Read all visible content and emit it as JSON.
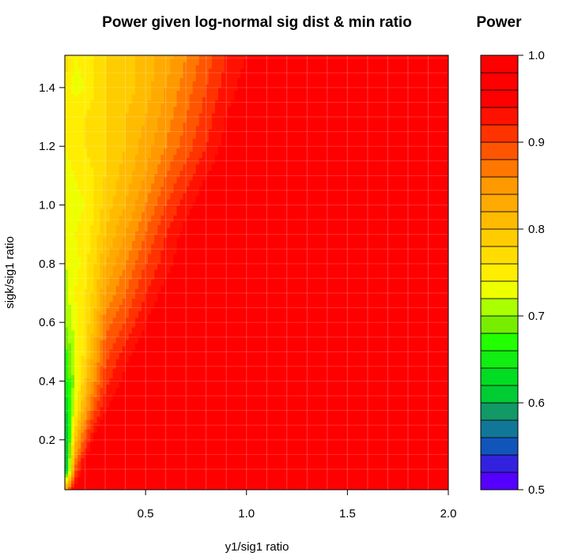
{
  "chart_data": {
    "type": "heatmap",
    "subtype": "filled-contour",
    "title": "Power given log-normal sig dist & min ratio",
    "xlabel": "y1/sig1 ratio",
    "ylabel": "sigk/sig1 ratio",
    "xlim": [
      0.1,
      2.0
    ],
    "ylim": [
      0.03,
      1.51
    ],
    "x_ticks": [
      0.5,
      1.0,
      1.5,
      2.0
    ],
    "x_tick_labels": [
      "0.5",
      "1.0",
      "1.5",
      "2.0"
    ],
    "y_ticks": [
      0.2,
      0.4,
      0.6,
      0.8,
      1.0,
      1.2,
      1.4
    ],
    "y_tick_labels": [
      "0.2",
      "0.4",
      "0.6",
      "0.8",
      "1.0",
      "1.2",
      "1.4"
    ],
    "grid": true,
    "x": [
      0.1,
      0.15,
      0.2,
      0.25,
      0.3,
      0.4,
      0.5,
      0.6,
      0.7,
      0.8,
      0.9,
      1.0,
      1.2,
      1.4,
      1.6,
      1.8,
      2.0
    ],
    "y": [
      0.03,
      0.1,
      0.2,
      0.3,
      0.4,
      0.5,
      0.6,
      0.7,
      0.8,
      0.9,
      1.0,
      1.1,
      1.2,
      1.3,
      1.4,
      1.51
    ],
    "z": [
      [
        0.84,
        0.96,
        1.0,
        1.0,
        1.0,
        1.0,
        1.0,
        1.0,
        1.0,
        1.0,
        1.0,
        1.0,
        1.0,
        1.0,
        1.0,
        1.0,
        1.0
      ],
      [
        0.56,
        0.88,
        0.97,
        1.0,
        1.0,
        1.0,
        1.0,
        1.0,
        1.0,
        1.0,
        1.0,
        1.0,
        1.0,
        1.0,
        1.0,
        1.0,
        1.0
      ],
      [
        0.57,
        0.8,
        0.9,
        0.95,
        0.98,
        1.0,
        1.0,
        1.0,
        1.0,
        1.0,
        1.0,
        1.0,
        1.0,
        1.0,
        1.0,
        1.0,
        1.0
      ],
      [
        0.6,
        0.74,
        0.84,
        0.9,
        0.94,
        0.97,
        0.99,
        1.0,
        1.0,
        1.0,
        1.0,
        1.0,
        1.0,
        1.0,
        1.0,
        1.0,
        1.0
      ],
      [
        0.65,
        0.71,
        0.8,
        0.86,
        0.91,
        0.95,
        0.97,
        0.99,
        1.0,
        1.0,
        1.0,
        1.0,
        1.0,
        1.0,
        1.0,
        1.0,
        1.0
      ],
      [
        0.67,
        0.72,
        0.77,
        0.83,
        0.89,
        0.93,
        0.96,
        0.98,
        0.99,
        1.0,
        1.0,
        1.0,
        1.0,
        1.0,
        1.0,
        1.0,
        1.0
      ],
      [
        0.7,
        0.73,
        0.76,
        0.81,
        0.87,
        0.9,
        0.94,
        0.97,
        0.99,
        1.0,
        1.0,
        1.0,
        1.0,
        1.0,
        1.0,
        1.0,
        1.0
      ],
      [
        0.71,
        0.74,
        0.76,
        0.79,
        0.84,
        0.88,
        0.92,
        0.95,
        0.97,
        0.99,
        1.0,
        1.0,
        1.0,
        1.0,
        1.0,
        1.0,
        1.0
      ],
      [
        0.72,
        0.73,
        0.75,
        0.78,
        0.82,
        0.86,
        0.9,
        0.93,
        0.96,
        0.98,
        0.99,
        1.0,
        1.0,
        1.0,
        1.0,
        1.0,
        1.0
      ],
      [
        0.72,
        0.74,
        0.75,
        0.77,
        0.8,
        0.84,
        0.88,
        0.92,
        0.95,
        0.97,
        0.98,
        0.99,
        1.0,
        1.0,
        1.0,
        1.0,
        1.0
      ],
      [
        0.72,
        0.73,
        0.74,
        0.76,
        0.79,
        0.82,
        0.86,
        0.9,
        0.93,
        0.96,
        0.97,
        0.99,
        1.0,
        1.0,
        1.0,
        1.0,
        1.0
      ],
      [
        0.73,
        0.74,
        0.75,
        0.76,
        0.78,
        0.81,
        0.84,
        0.88,
        0.91,
        0.94,
        0.96,
        0.98,
        0.99,
        1.0,
        1.0,
        1.0,
        1.0
      ],
      [
        0.74,
        0.75,
        0.76,
        0.77,
        0.78,
        0.8,
        0.83,
        0.86,
        0.89,
        0.92,
        0.95,
        0.97,
        0.99,
        1.0,
        1.0,
        1.0,
        1.0
      ],
      [
        0.75,
        0.76,
        0.76,
        0.77,
        0.78,
        0.8,
        0.82,
        0.85,
        0.88,
        0.91,
        0.94,
        0.96,
        0.98,
        0.99,
        1.0,
        1.0,
        1.0
      ],
      [
        0.76,
        0.73,
        0.74,
        0.76,
        0.78,
        0.79,
        0.81,
        0.84,
        0.87,
        0.9,
        0.93,
        0.95,
        0.97,
        0.99,
        0.99,
        1.0,
        1.0
      ],
      [
        0.77,
        0.74,
        0.75,
        0.76,
        0.78,
        0.79,
        0.81,
        0.83,
        0.86,
        0.89,
        0.92,
        0.94,
        0.96,
        0.98,
        0.99,
        1.0,
        1.0
      ]
    ],
    "color_scale": {
      "title": "Power",
      "min": 0.5,
      "max": 1.0,
      "tick_values": [
        0.5,
        0.6,
        0.7,
        0.8,
        0.9,
        1.0
      ],
      "tick_labels": [
        "0.5",
        "0.6",
        "0.7",
        "0.8",
        "0.9",
        "1.0"
      ],
      "levels": [
        "#5500ff",
        "#3322dd",
        "#1155bb",
        "#117799",
        "#119966",
        "#00cc33",
        "#00dd22",
        "#11ee11",
        "#22ff00",
        "#77ee00",
        "#aaff00",
        "#eeff00",
        "#ffee00",
        "#ffdd00",
        "#ffcc00",
        "#ffbb00",
        "#ffaa00",
        "#ff9900",
        "#ff7700",
        "#ff5500",
        "#ff3300",
        "#ff1100",
        "#ff0000",
        "#ff0000",
        "#ff0000"
      ]
    }
  }
}
